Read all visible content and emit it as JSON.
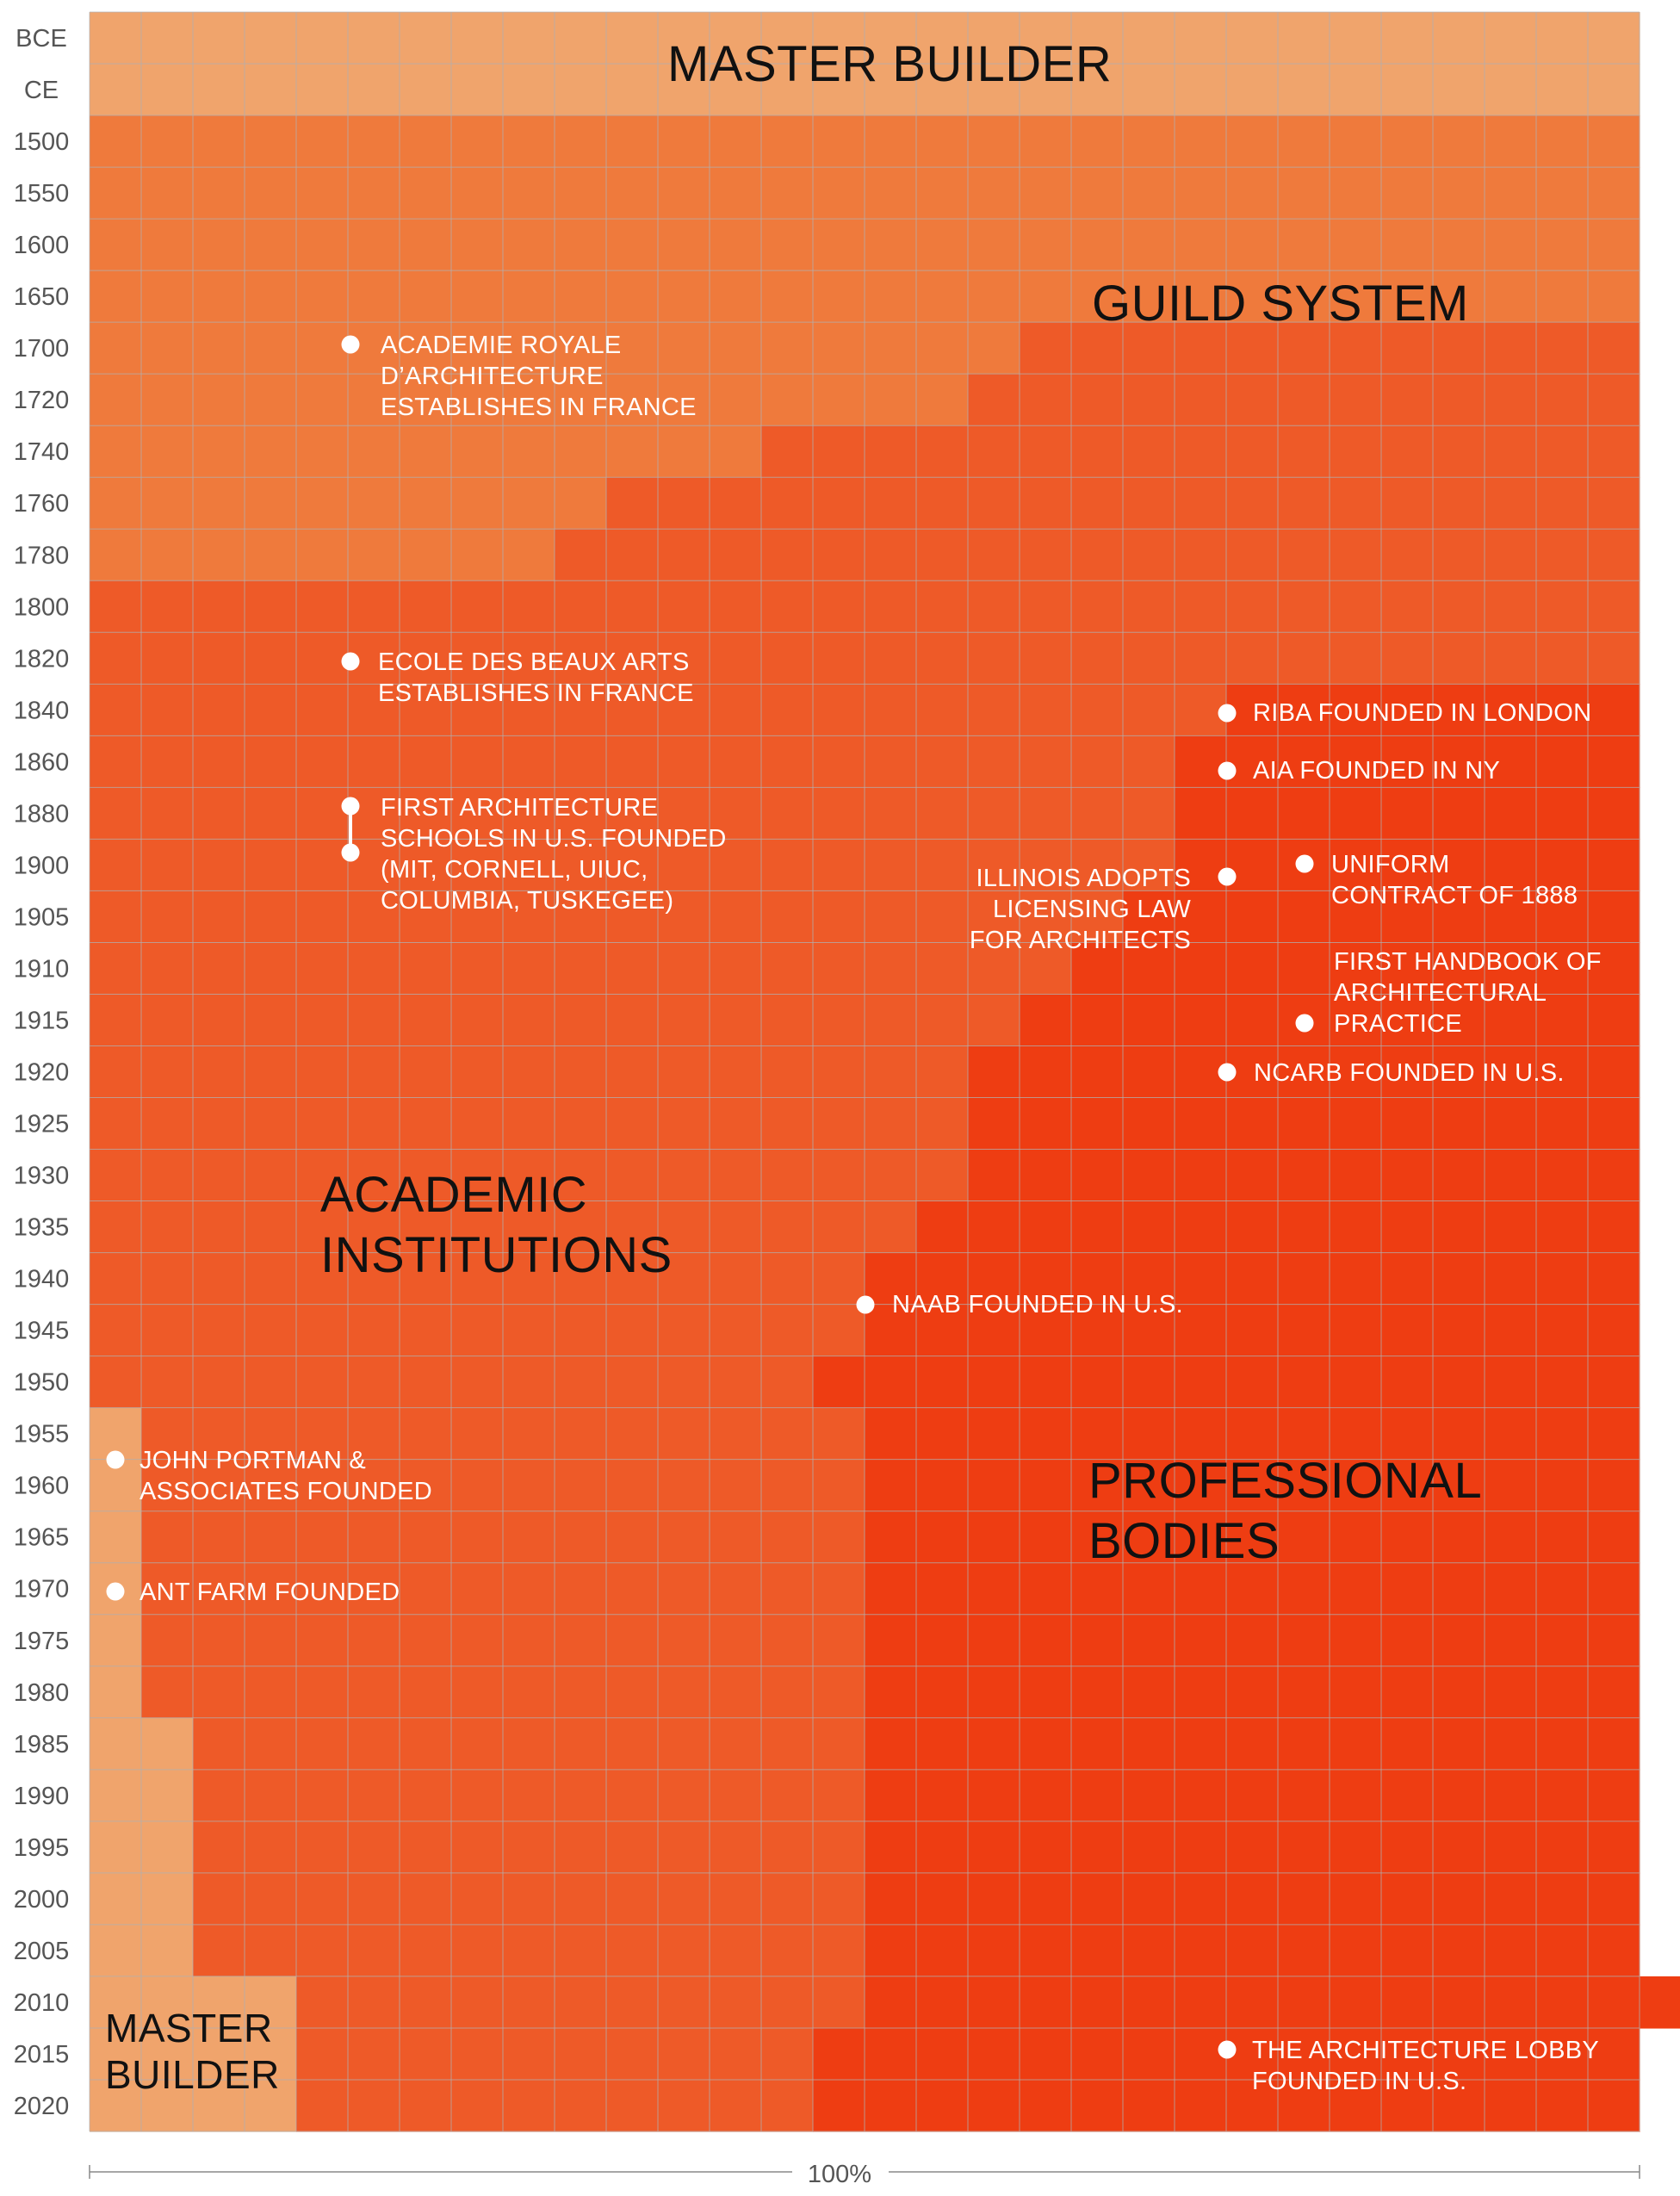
{
  "chart_data": {
    "type": "area",
    "xlabel": "100%",
    "row_labels": [
      "BCE",
      "CE",
      "1500",
      "1550",
      "1600",
      "1650",
      "1700",
      "1720",
      "1740",
      "1760",
      "1780",
      "1800",
      "1820",
      "1840",
      "1860",
      "1880",
      "1900",
      "1905",
      "1910",
      "1915",
      "1920",
      "1925",
      "1930",
      "1935",
      "1940",
      "1945",
      "1950",
      "1955",
      "1960",
      "1965",
      "1970",
      "1975",
      "1980",
      "1985",
      "1990",
      "1995",
      "2000",
      "2005",
      "2010",
      "2015",
      "2020"
    ],
    "column_count": 30,
    "colors": {
      "master_builder": "#f0a46c",
      "guild_system": "#ef7a3c",
      "academic_institutions": "#ee5a28",
      "professional_bodies": "#ee3d12",
      "grid": "#b0b0b0",
      "axis_text": "#555555"
    },
    "series": [
      {
        "name": "MASTER BUILDER",
        "key": "master_builder",
        "share_columns": [
          30,
          30,
          0,
          0,
          0,
          0,
          0,
          0,
          0,
          0,
          0,
          0,
          0,
          0,
          0,
          0,
          0,
          0,
          0,
          0,
          0,
          0,
          0,
          0,
          0,
          0,
          0,
          1,
          1,
          1,
          1,
          1,
          1,
          2,
          2,
          2,
          2,
          2,
          4,
          4,
          4
        ]
      },
      {
        "name": "GUILD SYSTEM",
        "key": "guild_system",
        "share_columns": [
          0,
          0,
          30,
          30,
          30,
          30,
          18,
          17,
          13,
          10,
          9,
          0,
          0,
          0,
          0,
          0,
          0,
          0,
          0,
          0,
          0,
          0,
          0,
          0,
          0,
          0,
          0,
          0,
          0,
          0,
          0,
          0,
          0,
          0,
          0,
          0,
          0,
          0,
          0,
          0,
          0
        ]
      },
      {
        "name": "ACADEMIC INSTITUTIONS",
        "key": "academic_institutions",
        "share_columns": [
          0,
          0,
          0,
          0,
          0,
          0,
          12,
          13,
          17,
          20,
          21,
          30,
          30,
          22,
          21,
          21,
          21,
          20,
          19,
          18,
          17,
          17,
          17,
          16,
          15,
          15,
          14,
          14,
          14,
          14,
          14,
          14,
          14,
          13,
          13,
          13,
          13,
          13,
          11,
          10,
          10
        ]
      },
      {
        "name": "PROFESSIONAL BODIES",
        "key": "professional_bodies",
        "share_columns": [
          0,
          0,
          0,
          0,
          0,
          0,
          0,
          0,
          0,
          0,
          0,
          0,
          0,
          8,
          9,
          9,
          9,
          10,
          11,
          12,
          13,
          13,
          13,
          14,
          15,
          15,
          16,
          15,
          15,
          15,
          15,
          15,
          15,
          15,
          15,
          15,
          15,
          15,
          16,
          16,
          16
        ]
      }
    ],
    "events": [
      {
        "text": "ACADEMIE ROYALE\nD’ARCHITECTURE\nESTABLISHES IN FRANCE",
        "row": "1700"
      },
      {
        "text": "ECOLE DES BEAUX ARTS\nESTABLISHES IN FRANCE",
        "row": "1820"
      },
      {
        "text": "FIRST ARCHITECTURE\nSCHOOLS IN U.S. FOUNDED\n(MIT, CORNELL, UIUC,\nCOLUMBIA, TUSKEGEE)",
        "row": "1880"
      },
      {
        "text": "RIBA FOUNDED IN LONDON",
        "row": "1840"
      },
      {
        "text": "AIA FOUNDED IN NY",
        "row": "1860"
      },
      {
        "text": "ILLINOIS ADOPTS\nLICENSING LAW\nFOR ARCHITECTS",
        "row": "1900"
      },
      {
        "text": "UNIFORM\nCONTRACT OF 1888",
        "row": "1900"
      },
      {
        "text": "FIRST HANDBOOK OF\nARCHITECTURAL\nPRACTICE",
        "row": "1915"
      },
      {
        "text": "NCARB FOUNDED IN U.S.",
        "row": "1920"
      },
      {
        "text": "NAAB FOUNDED IN U.S.",
        "row": "1940"
      },
      {
        "text": "JOHN PORTMAN &\nASSOCIATES FOUNDED",
        "row": "1955"
      },
      {
        "text": "ANT FARM FOUNDED",
        "row": "1970"
      },
      {
        "text": "THE ARCHITECTURE LOBBY\nFOUNDED IN U.S.",
        "row": "2015"
      }
    ],
    "region_labels": {
      "master_builder_top": "MASTER BUILDER",
      "guild_system": "GUILD SYSTEM",
      "academic_institutions": "ACADEMIC\nINSTITUTIONS",
      "professional_bodies": "PROFESSIONAL\nBODIES",
      "master_builder_bottom": "MASTER\nBUILDER"
    }
  }
}
